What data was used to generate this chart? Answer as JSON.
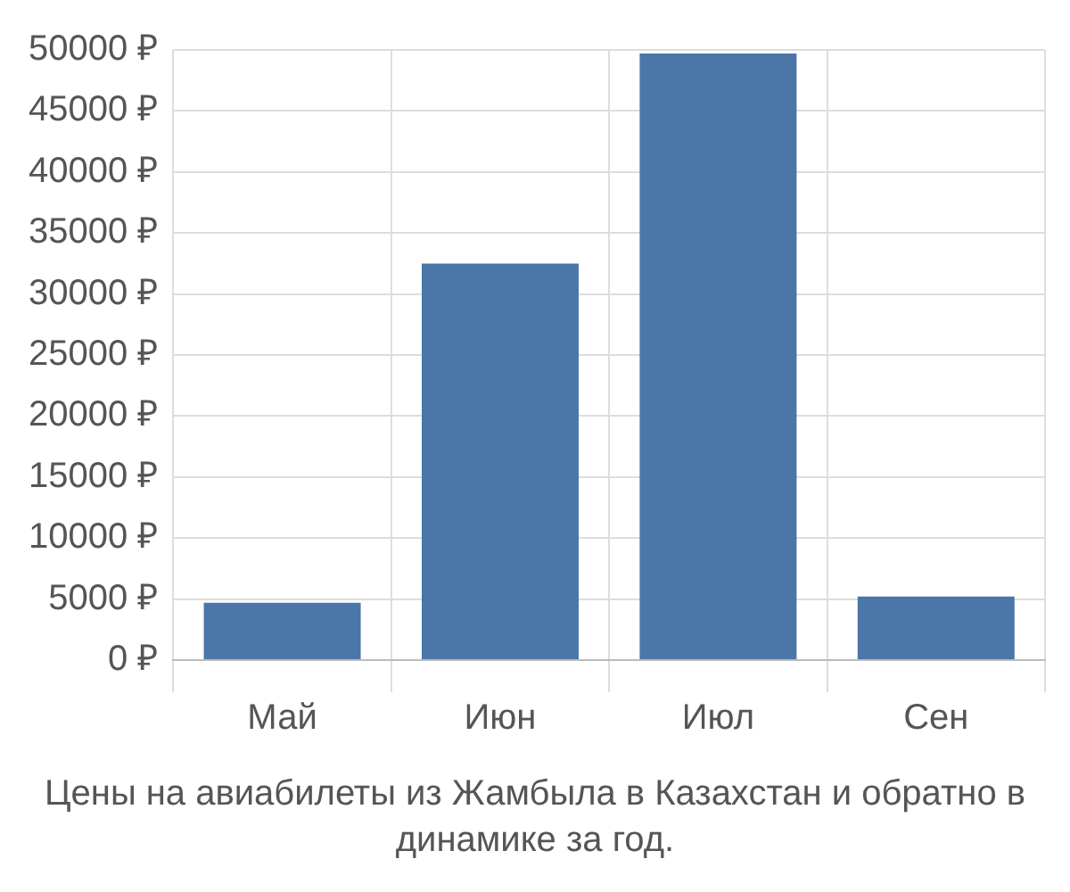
{
  "chart_data": {
    "type": "bar",
    "categories": [
      "Май",
      "Июн",
      "Июл",
      "Сен"
    ],
    "values": [
      4700,
      32500,
      49700,
      5200
    ],
    "color": "#4a76a8",
    "ylim": [
      0,
      50000
    ],
    "yticks": [
      {
        "value": 0,
        "label": "0 ₽"
      },
      {
        "value": 5000,
        "label": "5000 ₽"
      },
      {
        "value": 10000,
        "label": "10000 ₽"
      },
      {
        "value": 15000,
        "label": "15000 ₽"
      },
      {
        "value": 20000,
        "label": "20000 ₽"
      },
      {
        "value": 25000,
        "label": "25000 ₽"
      },
      {
        "value": 30000,
        "label": "30000 ₽"
      },
      {
        "value": 35000,
        "label": "35000 ₽"
      },
      {
        "value": 40000,
        "label": "40000 ₽"
      },
      {
        "value": 45000,
        "label": "45000 ₽"
      },
      {
        "value": 50000,
        "label": "50000 ₽"
      }
    ],
    "grid": true,
    "annotations": [
      "Цены на авиабилеты из Жамбыла в Казахстан и обратно в динамике за год."
    ]
  }
}
